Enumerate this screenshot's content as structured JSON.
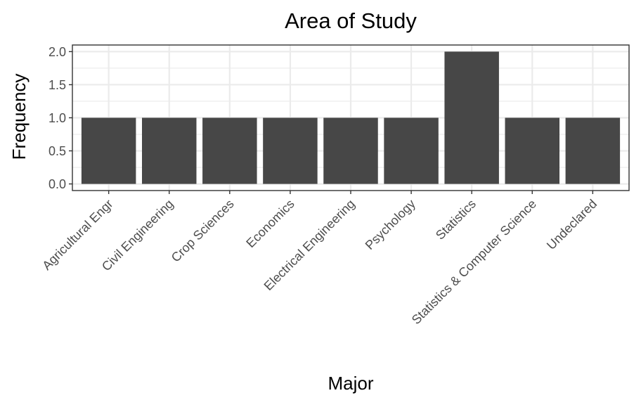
{
  "chart_data": {
    "type": "bar",
    "title": "Area of Study",
    "xlabel": "Major",
    "ylabel": "Frequency",
    "categories": [
      "Agricultural Engr",
      "Civil Engineering",
      "Crop Sciences",
      "Economics",
      "Electrical Engineering",
      "Psychology",
      "Statistics",
      "Statistics & Computer Science",
      "Undeclared"
    ],
    "values": [
      1,
      1,
      1,
      1,
      1,
      1,
      2,
      1,
      1
    ],
    "ylim": [
      0,
      2.0
    ],
    "yticks": [
      0.0,
      0.5,
      1.0,
      1.5,
      2.0
    ],
    "ytick_labels": [
      "0.0",
      "0.5",
      "1.0",
      "1.5",
      "2.0"
    ],
    "grid": true,
    "colors": {
      "bar": "#474747",
      "grid": "#ebebeb",
      "border": "#333333"
    }
  }
}
